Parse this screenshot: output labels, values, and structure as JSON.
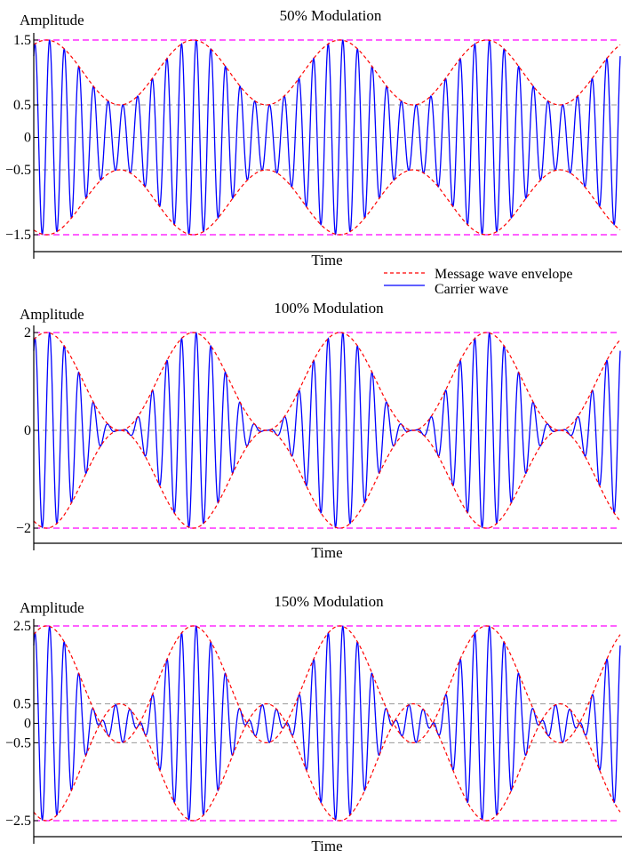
{
  "legend": [
    {
      "label": "Message wave envelope",
      "color": "#ff0000",
      "style": "dashed"
    },
    {
      "label": "Carrier wave",
      "color": "#0000ff",
      "style": "solid"
    }
  ],
  "colors": {
    "envelope": "#ff0000",
    "carrier": "#0000ff",
    "limit": "#ff00ff",
    "reference": "#999999",
    "axis": "#000000"
  },
  "chart_data": [
    {
      "type": "line",
      "title": "50% Modulation",
      "xlabel": "Time",
      "ylabel": "Amplitude",
      "modulation_index": 0.5,
      "message_cycles": 4,
      "carrier_cycles_per_message_cycle": 10,
      "ylim": [
        -1.5,
        1.5
      ],
      "yticks": [
        1.5,
        0.5,
        0,
        -0.5,
        -1.5
      ],
      "ytick_labels": [
        "1.5",
        "0.5",
        "0",
        "−0.5",
        "−1.5"
      ],
      "limit_lines": [
        1.5,
        -1.5
      ],
      "reference_lines": [
        0.5,
        0,
        -0.5
      ],
      "series": [
        {
          "name": "Message wave envelope",
          "envelope": "1 + 0.5·cos(message)"
        },
        {
          "name": "Carrier wave",
          "carrier": "(1 + 0.5·cos(message))·cos(carrier)"
        }
      ]
    },
    {
      "type": "line",
      "title": "100% Modulation",
      "xlabel": "Time",
      "ylabel": "Amplitude",
      "modulation_index": 1.0,
      "message_cycles": 4,
      "carrier_cycles_per_message_cycle": 10,
      "ylim": [
        -2,
        2
      ],
      "yticks": [
        2,
        0,
        -2
      ],
      "ytick_labels": [
        "2",
        "0",
        "−2"
      ],
      "limit_lines": [
        2,
        -2
      ],
      "reference_lines": [
        0
      ],
      "series": [
        {
          "name": "Message wave envelope",
          "envelope": "1 + 1.0·cos(message)"
        },
        {
          "name": "Carrier wave",
          "carrier": "(1 + 1.0·cos(message))·cos(carrier)"
        }
      ]
    },
    {
      "type": "line",
      "title": "150% Modulation",
      "xlabel": "Time",
      "ylabel": "Amplitude",
      "modulation_index": 1.5,
      "message_cycles": 4,
      "carrier_cycles_per_message_cycle": 10,
      "ylim": [
        -2.5,
        2.5
      ],
      "yticks": [
        2.5,
        0.5,
        0,
        -0.5,
        -2.5
      ],
      "ytick_labels": [
        "2.5",
        "0.5",
        "0",
        "−0.5",
        "−2.5"
      ],
      "limit_lines": [
        2.5,
        -2.5
      ],
      "reference_lines": [
        0.5,
        0,
        -0.5
      ],
      "series": [
        {
          "name": "Message wave envelope",
          "envelope": "1 + 1.5·cos(message)"
        },
        {
          "name": "Carrier wave",
          "carrier": "(1 + 1.5·cos(message))·cos(carrier)"
        }
      ]
    }
  ]
}
